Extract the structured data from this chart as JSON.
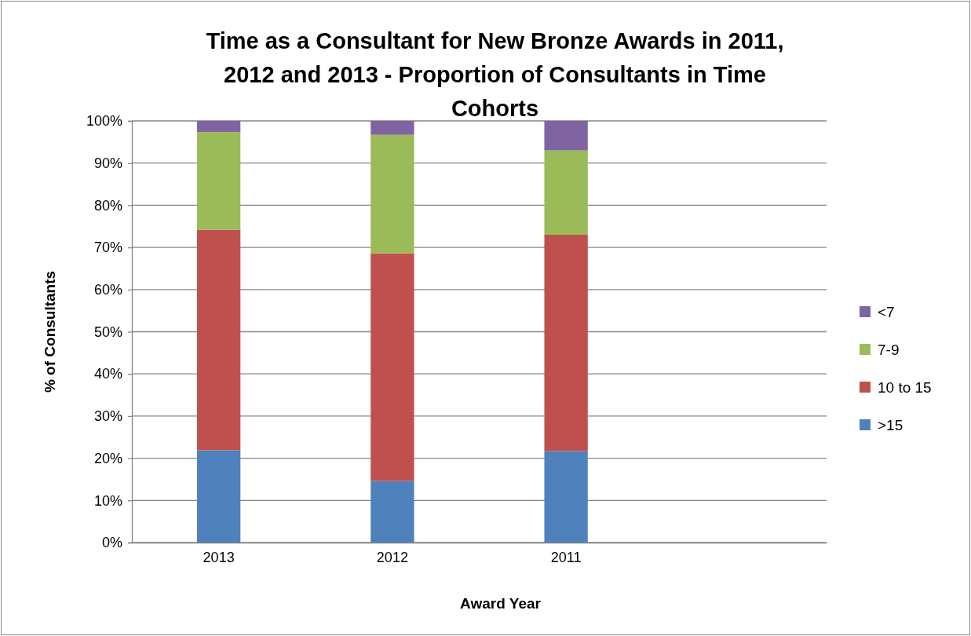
{
  "chart_data": {
    "type": "bar",
    "stacked": true,
    "title": "Time as a Consultant for New Bronze Awards in 2011, 2012 and 2013 - Proportion of Consultants in Time Cohorts",
    "xlabel": "Award Year",
    "ylabel": "% of Consultants",
    "categories": [
      "2013",
      "2012",
      "2011",
      null
    ],
    "series": [
      {
        "name": ">15",
        "color": "#4f81bd",
        "values": [
          21.9,
          14.6,
          21.7,
          null
        ]
      },
      {
        "name": "10 to 15",
        "color": "#c0504d",
        "values": [
          52.3,
          54.0,
          51.3,
          null
        ]
      },
      {
        "name": "7-9",
        "color": "#9bbb59",
        "values": [
          23.2,
          28.1,
          20.0,
          null
        ]
      },
      {
        "name": "<7",
        "color": "#8064a2",
        "values": [
          2.6,
          3.3,
          7.0,
          null
        ]
      }
    ],
    "ylim": [
      0,
      100
    ],
    "yticks": [
      {
        "value": 0,
        "label": "0%"
      },
      {
        "value": 10,
        "label": "10%"
      },
      {
        "value": 20,
        "label": "20%"
      },
      {
        "value": 30,
        "label": "30%"
      },
      {
        "value": 40,
        "label": "40%"
      },
      {
        "value": 50,
        "label": "50%"
      },
      {
        "value": 60,
        "label": "60%"
      },
      {
        "value": 70,
        "label": "70%"
      },
      {
        "value": 80,
        "label": "80%"
      },
      {
        "value": 90,
        "label": "90%"
      },
      {
        "value": 100,
        "label": "100%"
      }
    ],
    "grid": "y",
    "legend": "right"
  }
}
